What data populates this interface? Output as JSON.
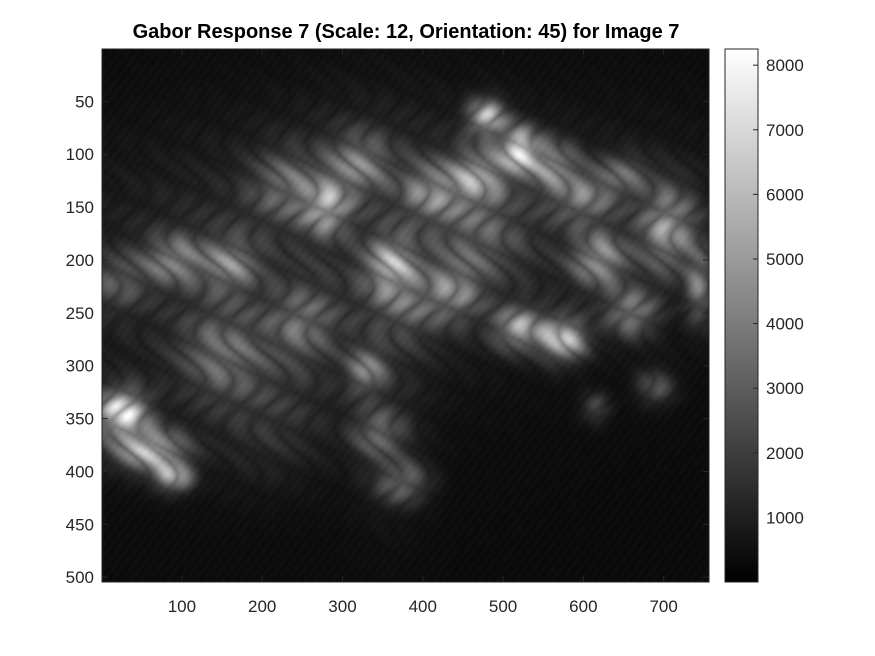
{
  "chart_data": {
    "type": "heatmap",
    "title": "Gabor Response 7 (Scale: 12, Orientation: 45) for Image 7",
    "xlabel": "",
    "ylabel": "",
    "xlim": [
      0.5,
      756.5
    ],
    "ylim": [
      0.5,
      504.5
    ],
    "y_direction": "reverse",
    "x_ticks": [
      100,
      200,
      300,
      400,
      500,
      600,
      700
    ],
    "x_tick_labels": [
      "100",
      "200",
      "300",
      "400",
      "500",
      "600",
      "700"
    ],
    "y_ticks": [
      50,
      100,
      150,
      200,
      250,
      300,
      350,
      400,
      450,
      500
    ],
    "y_tick_labels": [
      "50",
      "100",
      "150",
      "200",
      "250",
      "300",
      "350",
      "400",
      "450",
      "500"
    ],
    "colormap": "gray",
    "color_limits": [
      0,
      8250
    ],
    "colorbar_ticks": [
      1000,
      2000,
      3000,
      4000,
      5000,
      6000,
      7000,
      8000
    ],
    "colorbar_tick_labels": [
      "1000",
      "2000",
      "3000",
      "4000",
      "5000",
      "6000",
      "7000",
      "8000"
    ],
    "blobs": [
      {
        "x": 25,
        "y": 345,
        "sx": 22,
        "sy": 16,
        "v": 8000
      },
      {
        "x": 60,
        "y": 380,
        "sx": 30,
        "sy": 14,
        "v": 6500
      },
      {
        "x": 90,
        "y": 405,
        "sx": 16,
        "sy": 10,
        "v": 5500
      },
      {
        "x": 20,
        "y": 220,
        "sx": 24,
        "sy": 18,
        "v": 2200
      },
      {
        "x": 90,
        "y": 200,
        "sx": 26,
        "sy": 16,
        "v": 3800
      },
      {
        "x": 160,
        "y": 205,
        "sx": 24,
        "sy": 18,
        "v": 3500
      },
      {
        "x": 150,
        "y": 290,
        "sx": 36,
        "sy": 28,
        "v": 2800
      },
      {
        "x": 250,
        "y": 260,
        "sx": 28,
        "sy": 24,
        "v": 2600
      },
      {
        "x": 210,
        "y": 350,
        "sx": 50,
        "sy": 40,
        "v": 1200
      },
      {
        "x": 280,
        "y": 150,
        "sx": 20,
        "sy": 18,
        "v": 5000
      },
      {
        "x": 230,
        "y": 130,
        "sx": 28,
        "sy": 22,
        "v": 2600
      },
      {
        "x": 320,
        "y": 110,
        "sx": 26,
        "sy": 20,
        "v": 3400
      },
      {
        "x": 360,
        "y": 205,
        "sx": 22,
        "sy": 20,
        "v": 4800
      },
      {
        "x": 330,
        "y": 305,
        "sx": 16,
        "sy": 14,
        "v": 3800
      },
      {
        "x": 345,
        "y": 365,
        "sx": 22,
        "sy": 16,
        "v": 3000
      },
      {
        "x": 375,
        "y": 410,
        "sx": 22,
        "sy": 14,
        "v": 3300
      },
      {
        "x": 410,
        "y": 135,
        "sx": 26,
        "sy": 18,
        "v": 3600
      },
      {
        "x": 470,
        "y": 120,
        "sx": 24,
        "sy": 18,
        "v": 4600
      },
      {
        "x": 480,
        "y": 65,
        "sx": 16,
        "sy": 12,
        "v": 6200
      },
      {
        "x": 520,
        "y": 95,
        "sx": 16,
        "sy": 14,
        "v": 7600
      },
      {
        "x": 560,
        "y": 110,
        "sx": 22,
        "sy": 16,
        "v": 4200
      },
      {
        "x": 440,
        "y": 230,
        "sx": 24,
        "sy": 20,
        "v": 3200
      },
      {
        "x": 520,
        "y": 265,
        "sx": 22,
        "sy": 14,
        "v": 5400
      },
      {
        "x": 575,
        "y": 275,
        "sx": 20,
        "sy": 14,
        "v": 6800
      },
      {
        "x": 620,
        "y": 200,
        "sx": 24,
        "sy": 18,
        "v": 4600
      },
      {
        "x": 660,
        "y": 250,
        "sx": 22,
        "sy": 16,
        "v": 4000
      },
      {
        "x": 705,
        "y": 170,
        "sx": 24,
        "sy": 28,
        "v": 4800
      },
      {
        "x": 745,
        "y": 225,
        "sx": 12,
        "sy": 24,
        "v": 3600
      },
      {
        "x": 600,
        "y": 140,
        "sx": 28,
        "sy": 18,
        "v": 3400
      },
      {
        "x": 650,
        "y": 120,
        "sx": 22,
        "sy": 14,
        "v": 2600
      },
      {
        "x": 615,
        "y": 340,
        "sx": 12,
        "sy": 10,
        "v": 2200
      },
      {
        "x": 690,
        "y": 320,
        "sx": 16,
        "sy": 12,
        "v": 2600
      },
      {
        "x": 380,
        "y": 240,
        "sx": 30,
        "sy": 24,
        "v": 2000
      },
      {
        "x": 470,
        "y": 175,
        "sx": 40,
        "sy": 30,
        "v": 2000
      }
    ],
    "region": [
      {
        "x": 150,
        "y": 240,
        "sx": 170,
        "sy": 95,
        "v": 1000
      },
      {
        "x": 480,
        "y": 170,
        "sx": 260,
        "sy": 75,
        "v": 1100
      },
      {
        "x": 330,
        "y": 160,
        "sx": 90,
        "sy": 75,
        "v": 900
      },
      {
        "x": 355,
        "y": 345,
        "sx": 35,
        "sy": 75,
        "v": 650
      }
    ]
  }
}
